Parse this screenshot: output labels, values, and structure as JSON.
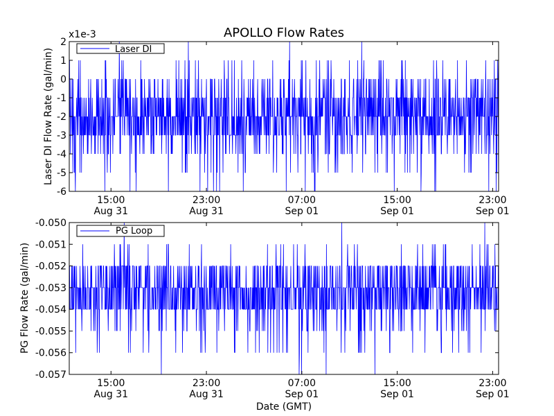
{
  "figure": {
    "title": "APOLLO Flow Rates",
    "xlabel": "Date (GMT)",
    "line_color": "#0000ff"
  },
  "chart_data": [
    {
      "type": "line",
      "id": "laser",
      "ylabel": "Laser DI Flow Rate (gal/min)",
      "offset_text": "x1e-3",
      "legend": "Laser DI",
      "legend_placement": "top-left",
      "ylim": [
        -6,
        2
      ],
      "yticks": [
        2,
        1,
        0,
        -1,
        -2,
        -3,
        -4,
        -5,
        -6
      ],
      "ytick_labels": [
        "2",
        "1",
        "0",
        "-1",
        "-2",
        "-3",
        "-4",
        "-5",
        "-6"
      ],
      "xticks": [
        {
          "time": "15:00",
          "date": "Aug 31"
        },
        {
          "time": "23:00",
          "date": "Aug 31"
        },
        {
          "time": "07:00",
          "date": "Sep 01"
        },
        {
          "time": "15:00",
          "date": "Sep 01"
        },
        {
          "time": "23:00",
          "date": "Sep 01"
        }
      ],
      "x_range_hours": [
        11.5,
        47.5
      ],
      "series": [
        {
          "values_note": "noisy signal, mostly between -3 and -1 (x1e-3)",
          "baseline": -2,
          "levels": [
            2,
            1,
            0,
            -1,
            -2,
            -3,
            -4,
            -5,
            -6
          ],
          "weights": [
            0.002,
            0.03,
            0.12,
            0.2,
            0.3,
            0.22,
            0.08,
            0.035,
            0.013
          ]
        }
      ],
      "grid": false
    },
    {
      "type": "line",
      "id": "pg",
      "ylabel": "PG Flow Rate (gal/min)",
      "legend": "PG Loop",
      "legend_placement": "top-left",
      "ylim": [
        -0.057,
        -0.05
      ],
      "yticks": [
        -0.05,
        -0.051,
        -0.052,
        -0.053,
        -0.054,
        -0.055,
        -0.056,
        -0.057
      ],
      "ytick_labels": [
        "-0.050",
        "-0.051",
        "-0.052",
        "-0.053",
        "-0.054",
        "-0.055",
        "-0.056",
        "-0.057"
      ],
      "xticks": [
        {
          "time": "15:00",
          "date": "Aug 31"
        },
        {
          "time": "23:00",
          "date": "Aug 31"
        },
        {
          "time": "07:00",
          "date": "Sep 01"
        },
        {
          "time": "15:00",
          "date": "Sep 01"
        },
        {
          "time": "23:00",
          "date": "Sep 01"
        }
      ],
      "x_range_hours": [
        11.5,
        47.5
      ],
      "series": [
        {
          "baseline": -0.0535,
          "levels": [
            -0.05,
            -0.051,
            -0.052,
            -0.053,
            -0.054,
            -0.055,
            -0.056,
            -0.057
          ],
          "weights": [
            0.004,
            0.03,
            0.23,
            0.34,
            0.3,
            0.06,
            0.03,
            0.006
          ]
        }
      ],
      "grid": false
    }
  ]
}
